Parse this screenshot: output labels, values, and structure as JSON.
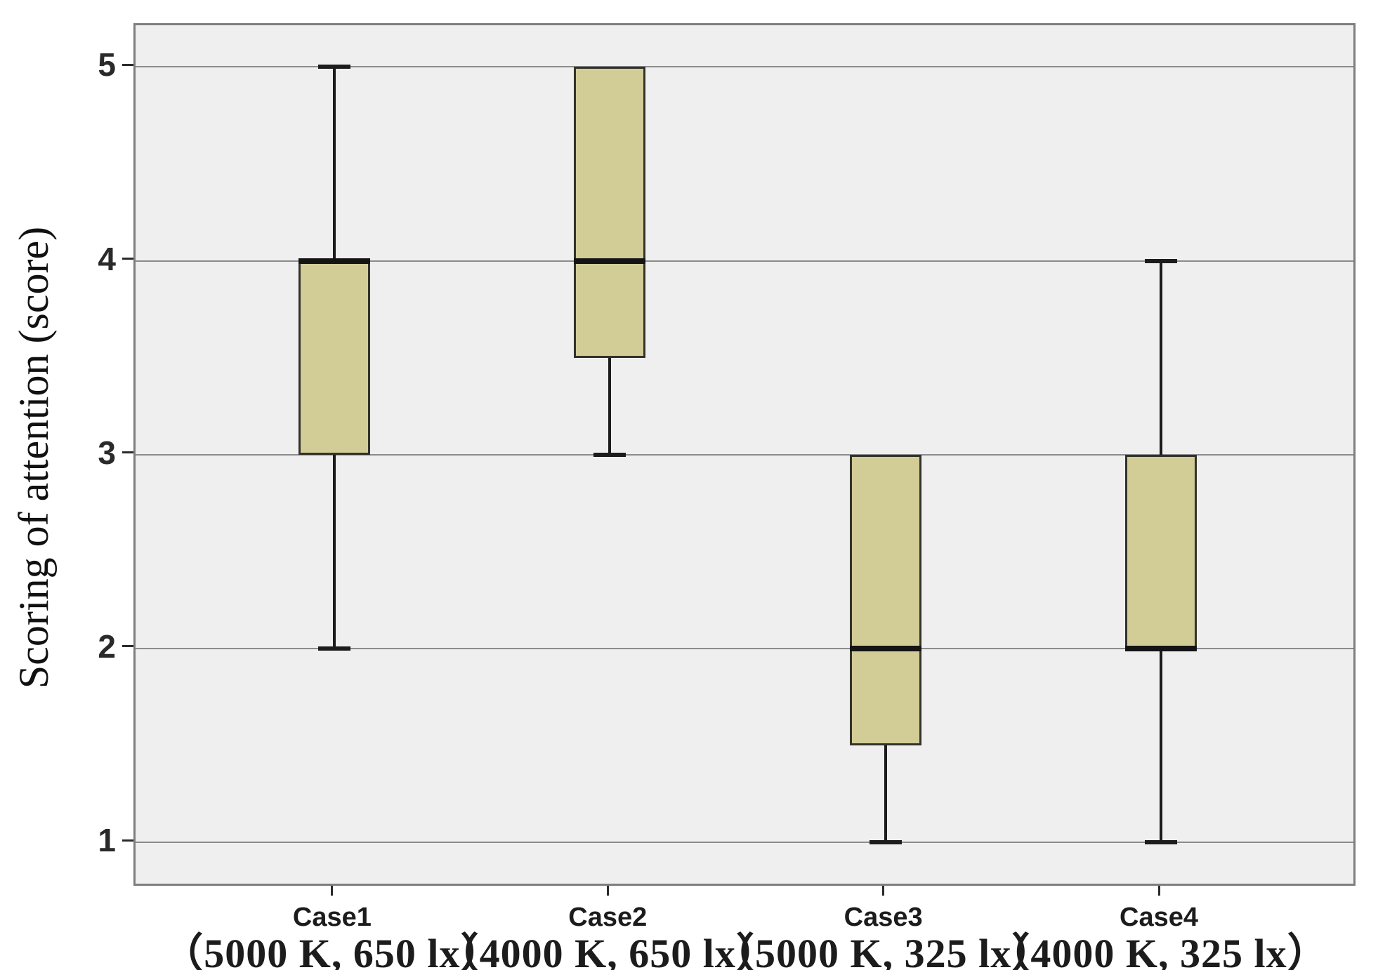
{
  "chart_data": {
    "type": "boxplot",
    "title": "",
    "xlabel": "",
    "ylabel": "Scoring of attention (score)",
    "ylim": [
      0.765,
      5.215
    ],
    "yticks": [
      5,
      4,
      3,
      2,
      1
    ],
    "grid": "horizontal-on",
    "legend": "none",
    "categories": [
      {
        "label": "Case1",
        "spec": "(5000 K, 650 lx)"
      },
      {
        "label": "Case2",
        "spec": "(4000 K, 650 lx)"
      },
      {
        "label": "Case3",
        "spec": "(5000 K, 325 lx)"
      },
      {
        "label": "Case4",
        "spec": "(4000 K, 325 lx)"
      }
    ],
    "series": [
      {
        "name": "Case1",
        "min": 2,
        "q1": 3,
        "median": 4,
        "q3": 4,
        "max": 5
      },
      {
        "name": "Case2",
        "min": 3,
        "q1": 3.5,
        "median": 4,
        "q3": 5,
        "max": 5
      },
      {
        "name": "Case3",
        "min": 1,
        "q1": 1.5,
        "median": 2,
        "q3": 3,
        "max": 3
      },
      {
        "name": "Case4",
        "min": 1,
        "q1": 2,
        "median": 2,
        "q3": 3,
        "max": 4
      }
    ],
    "colors": {
      "box_fill": "#d2cd96",
      "box_border": "#32322a",
      "median": "#141414",
      "whisker": "#1c1c1c",
      "gridline": "#8b8b8b",
      "frame": "#7e7e7e",
      "plot_background": "#f0eff0",
      "page_background": "#ffffff",
      "text": "#1c1c1c"
    }
  }
}
